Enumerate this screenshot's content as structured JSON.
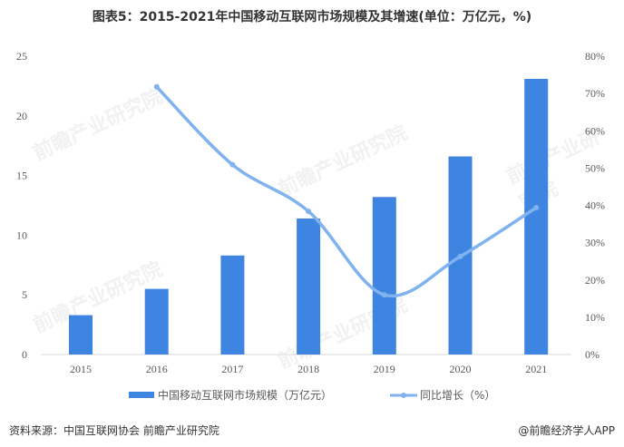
{
  "title": "图表5：2015-2021年中国移动互联网市场规模及其增速(单位：万亿元，%)",
  "source": "资料来源：中国互联网协会 前瞻产业研究院",
  "brand": "@前瞻经济学人APP",
  "watermark": "前瞻产业研究院",
  "chart_data": {
    "type": "bar+line",
    "categories": [
      "2015",
      "2016",
      "2017",
      "2018",
      "2019",
      "2020",
      "2021"
    ],
    "series": [
      {
        "name": "中国移动互联网市场规模（万亿元）",
        "type": "bar",
        "axis": "left",
        "color": "#3D85E0",
        "values": [
          3.3,
          5.5,
          8.3,
          11.4,
          13.2,
          16.6,
          23.1
        ]
      },
      {
        "name": "同比增长（%）",
        "type": "line",
        "axis": "right",
        "color": "#7FB2EE",
        "values": [
          null,
          71.8,
          50.9,
          38.4,
          16.0,
          26.3,
          39.4
        ]
      }
    ],
    "left_axis": {
      "ylim": [
        0,
        25
      ],
      "ticks": [
        "0",
        "5",
        "10",
        "15",
        "20",
        "25"
      ]
    },
    "right_axis": {
      "ylim": [
        0,
        80
      ],
      "ticks": [
        "0%",
        "10%",
        "20%",
        "30%",
        "40%",
        "50%",
        "60%",
        "70%",
        "80%"
      ]
    },
    "grid": false,
    "legend": "bottom"
  }
}
